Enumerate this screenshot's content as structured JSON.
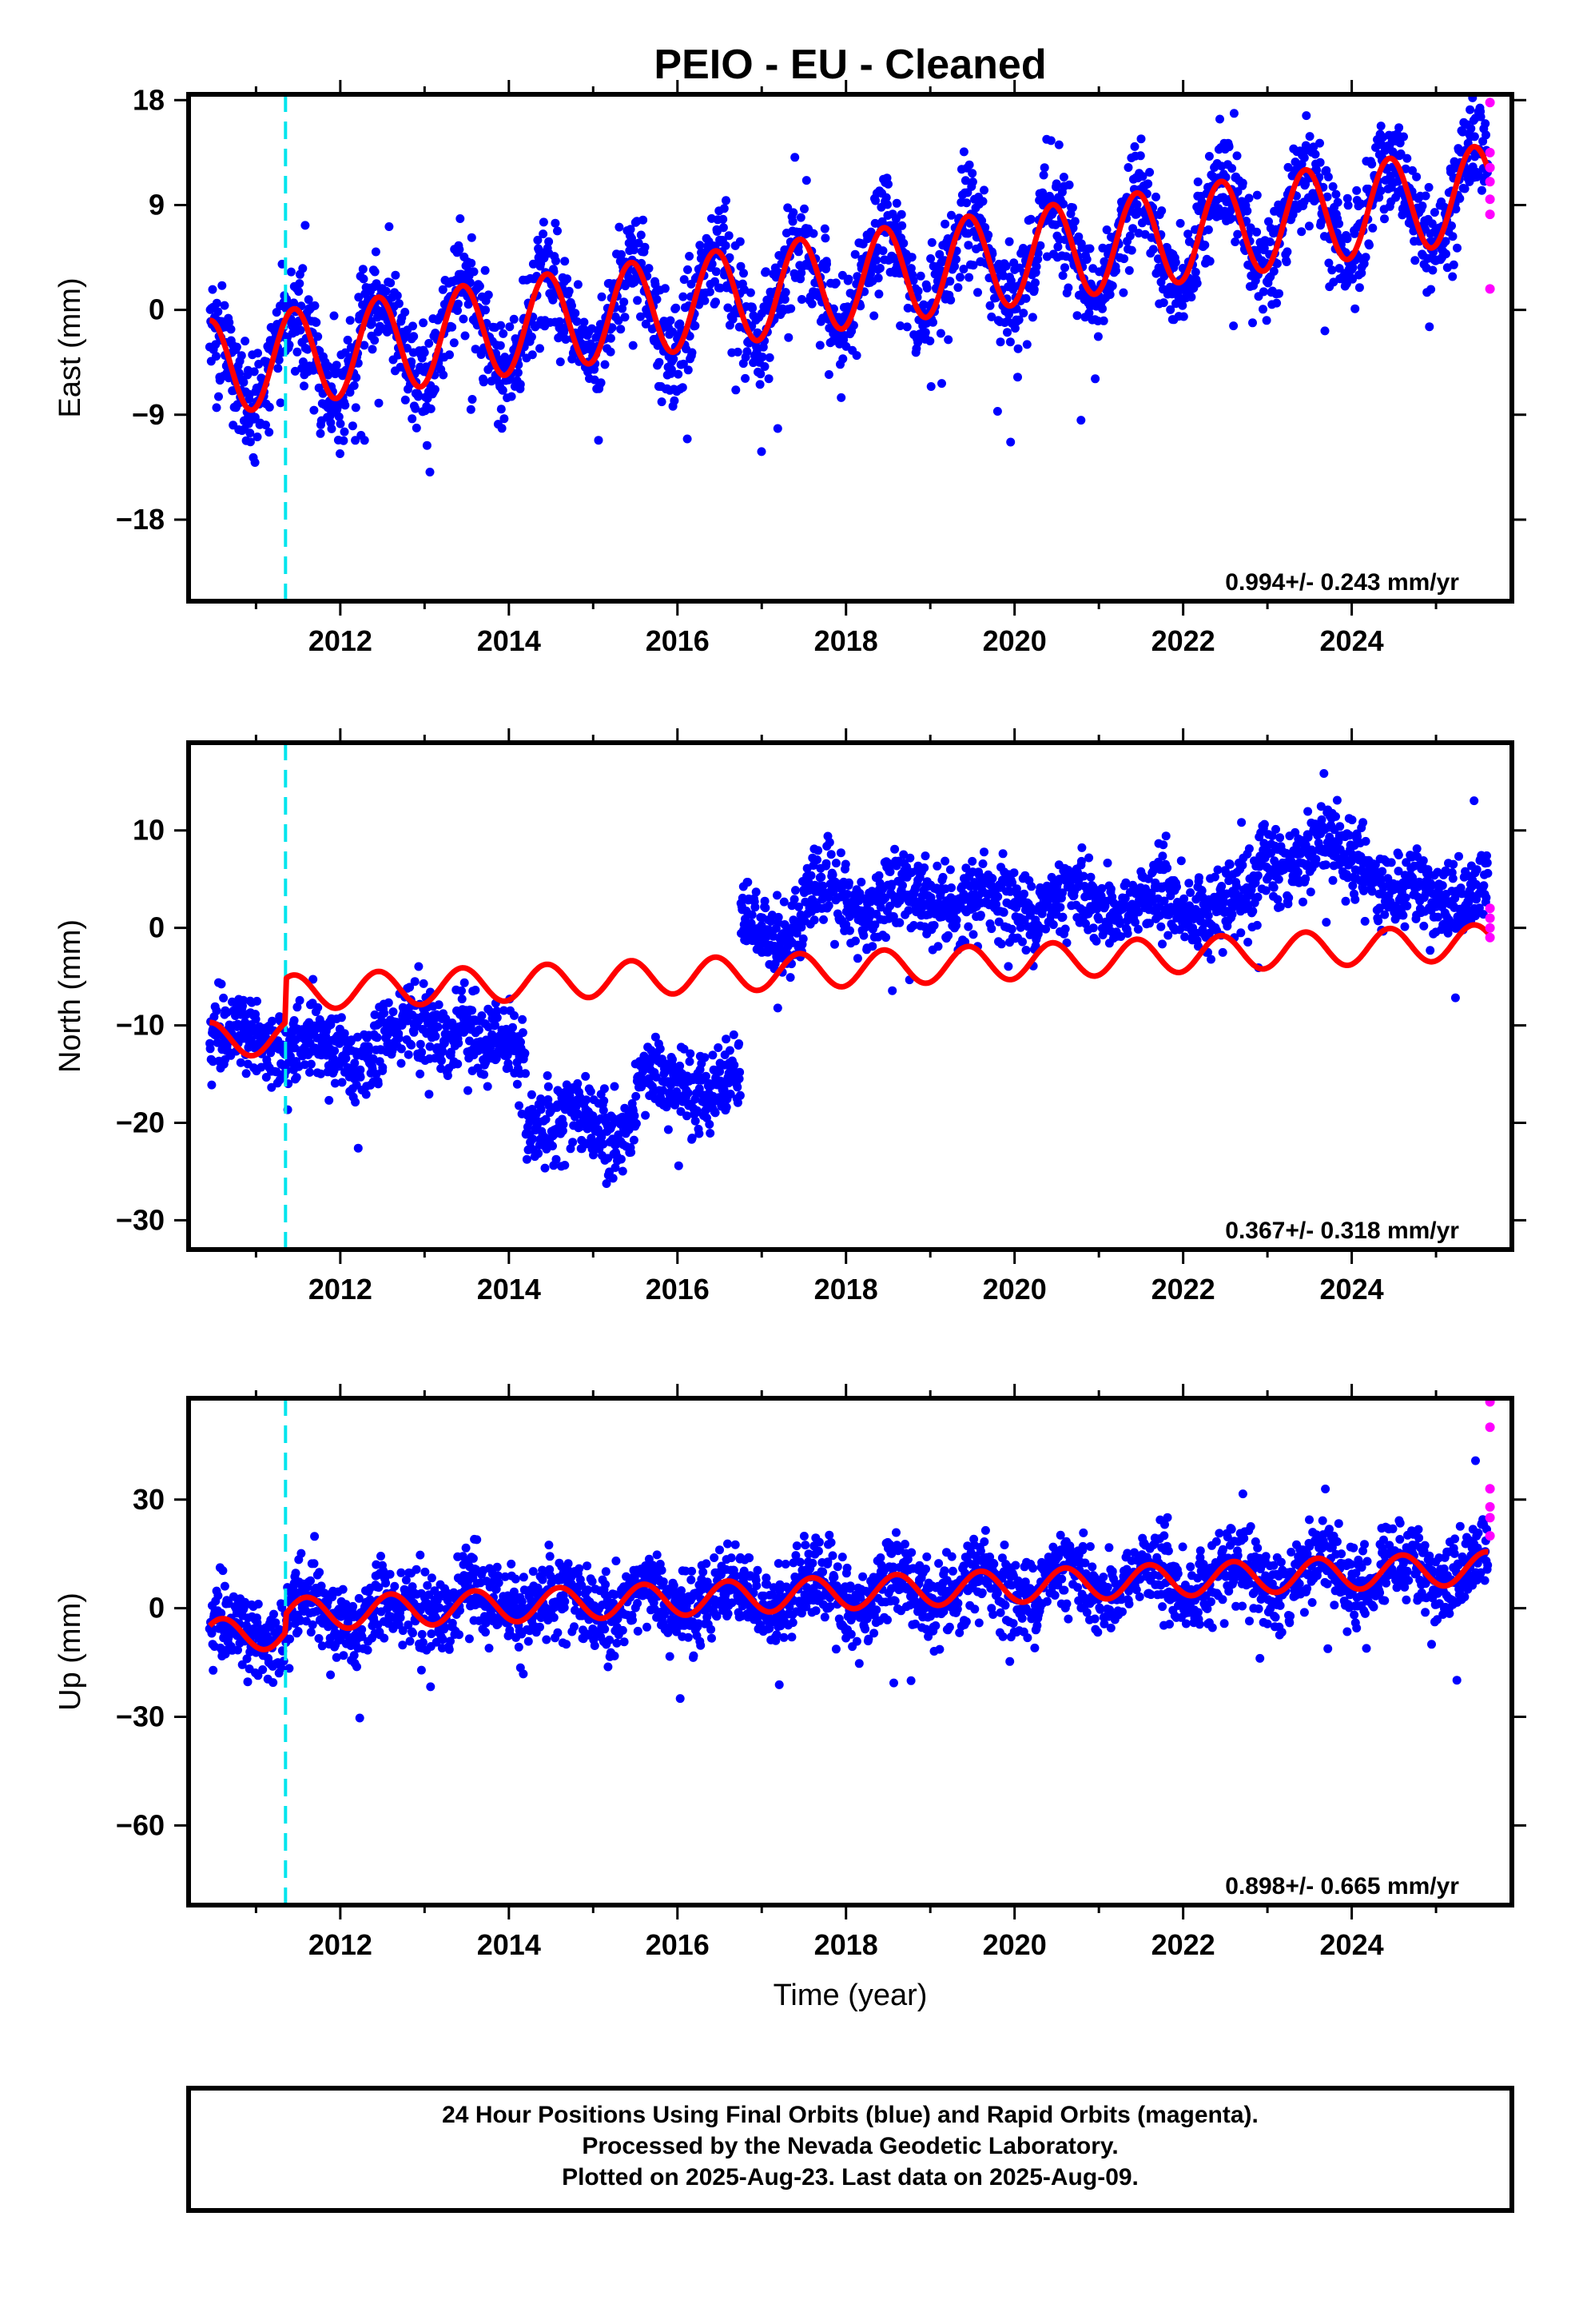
{
  "chart_data": [
    {
      "type": "scatter",
      "title": "PEIO  - EU - Cleaned",
      "ylabel": "East (mm)",
      "xlabel": "",
      "xlim": [
        2010.2,
        2025.9
      ],
      "ylim": [
        -25,
        18.5
      ],
      "yticks": [
        18,
        9,
        0,
        -9,
        -18
      ],
      "ytick_labels": [
        "18",
        "9",
        "0",
        "−9",
        "−18"
      ],
      "xticks": [
        2012,
        2014,
        2016,
        2018,
        2020,
        2022,
        2024
      ],
      "xtick_labels": [
        "2012",
        "2014",
        "2016",
        "2018",
        "2020",
        "2022",
        "2024"
      ],
      "rate_label": "0.994+/- 0.243 mm/yr",
      "vertical_marker": 2011.35,
      "colors": {
        "final": "#0000ff",
        "rapid": "#ff00ff",
        "model": "#ff0000",
        "marker": "#00e5ee"
      },
      "model": {
        "start": 2010.45,
        "end": 2025.62,
        "offset": -5.0,
        "rate": 0.994,
        "amp": 4.1,
        "phase_year": 2010.45,
        "break_at": 2011.35,
        "break_jump": 0.0
      },
      "scatter": {
        "noise": 2.2,
        "outlier_rate": 0.03,
        "outlier_scale": 8
      },
      "rapid_points": [
        17.8,
        13.5,
        12.2,
        11.0,
        9.5,
        8.2,
        1.8
      ]
    },
    {
      "type": "scatter",
      "title": "",
      "ylabel": "North (mm)",
      "xlabel": "",
      "xlim": [
        2010.2,
        2025.9
      ],
      "ylim": [
        -33,
        19
      ],
      "yticks": [
        10,
        0,
        -10,
        -20,
        -30
      ],
      "ytick_labels": [
        "10",
        "0",
        "−10",
        "−20",
        "−30"
      ],
      "xticks": [
        2012,
        2014,
        2016,
        2018,
        2020,
        2022,
        2024
      ],
      "xtick_labels": [
        "2012",
        "2014",
        "2016",
        "2018",
        "2020",
        "2022",
        "2024"
      ],
      "rate_label": "0.367+/- 0.318 mm/yr",
      "vertical_marker": 2011.35,
      "colors": {
        "final": "#0000ff",
        "rapid": "#ff00ff",
        "model": "#ff0000",
        "marker": "#00e5ee"
      },
      "model": {
        "start": 2010.45,
        "end": 2025.62,
        "offset": -11.5,
        "rate": 0.367,
        "amp": 1.8,
        "phase_year": 2010.45,
        "break_at": 2011.35,
        "break_jump": 4.5
      },
      "data_segments": [
        {
          "start": 2010.45,
          "end": 2011.35,
          "level": -11.5
        },
        {
          "start": 2011.35,
          "end": 2012.5,
          "level": -12.5
        },
        {
          "start": 2012.5,
          "end": 2013.5,
          "level": -10.5
        },
        {
          "start": 2013.5,
          "end": 2014.2,
          "level": -12.5
        },
        {
          "start": 2014.2,
          "end": 2015.5,
          "level": -20.0
        },
        {
          "start": 2015.5,
          "end": 2016.75,
          "level": -16.0
        },
        {
          "start": 2016.75,
          "end": 2017.5,
          "level": 0.0
        },
        {
          "start": 2017.5,
          "end": 2019.5,
          "level": 3.0
        },
        {
          "start": 2019.5,
          "end": 2022.9,
          "level": 2.5
        },
        {
          "start": 2022.9,
          "end": 2024.3,
          "level": 7.5
        },
        {
          "start": 2024.3,
          "end": 2025.62,
          "level": 3.5
        }
      ],
      "scatter": {
        "noise": 2.0,
        "outlier_rate": 0.02,
        "outlier_scale": 6
      },
      "rapid_points": [
        2.0,
        1.0,
        0.0,
        -1.0
      ]
    },
    {
      "type": "scatter",
      "title": "",
      "ylabel": "Up (mm)",
      "xlabel": "Time (year)",
      "xlim": [
        2010.2,
        2025.9
      ],
      "ylim": [
        -82,
        58
      ],
      "yticks": [
        30,
        0,
        -30,
        -60
      ],
      "ytick_labels": [
        "30",
        "0",
        "−30",
        "−60"
      ],
      "xticks": [
        2012,
        2014,
        2016,
        2018,
        2020,
        2022,
        2024
      ],
      "xtick_labels": [
        "2012",
        "2014",
        "2016",
        "2018",
        "2020",
        "2022",
        "2024"
      ],
      "rate_label": "0.898+/- 0.665 mm/yr",
      "vertical_marker": 2011.35,
      "colors": {
        "final": "#0000ff",
        "rapid": "#ff00ff",
        "model": "#ff0000",
        "marker": "#00e5ee"
      },
      "model": {
        "start": 2010.45,
        "end": 2025.62,
        "offset": -7.5,
        "rate": 0.898,
        "amp": 4.5,
        "phase_year": 2010.6,
        "break_at": 2011.35,
        "break_jump": 5.0
      },
      "scatter": {
        "noise": 5.5,
        "outlier_rate": 0.02,
        "outlier_scale": 18
      },
      "rapid_points": [
        57.0,
        50.0,
        33.0,
        28.0,
        25.0,
        20.0
      ]
    }
  ],
  "legend_box": {
    "line1": "24 Hour Positions Using Final Orbits (blue) and Rapid Orbits (magenta).",
    "line2": "Processed by the Nevada Geodetic Laboratory.",
    "line3": "Plotted on 2025-Aug-23. Last data on 2025-Aug-09."
  }
}
